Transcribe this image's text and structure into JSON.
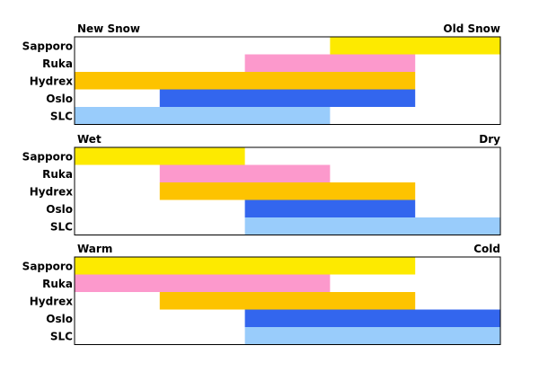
{
  "chart_data": [
    {
      "type": "bar",
      "subtype": "range",
      "left_label": "New Snow",
      "right_label": "Old Snow",
      "xlim": [
        0,
        5
      ],
      "grid": false,
      "categories": [
        "Sapporo",
        "Ruka",
        "Hydrex",
        "Oslo",
        "SLC"
      ],
      "series": [
        {
          "values": [
            [
              3,
              5
            ],
            [
              2,
              4
            ],
            [
              0,
              4
            ],
            [
              1,
              4
            ],
            [
              0,
              3
            ]
          ]
        }
      ]
    },
    {
      "type": "bar",
      "subtype": "range",
      "left_label": "Wet",
      "right_label": "Dry",
      "xlim": [
        0,
        5
      ],
      "grid": false,
      "categories": [
        "Sapporo",
        "Ruka",
        "Hydrex",
        "Oslo",
        "SLC"
      ],
      "series": [
        {
          "values": [
            [
              0,
              2
            ],
            [
              1,
              3
            ],
            [
              1,
              4
            ],
            [
              2,
              4
            ],
            [
              2,
              5
            ]
          ]
        }
      ]
    },
    {
      "type": "bar",
      "subtype": "range",
      "left_label": "Warm",
      "right_label": "Cold",
      "xlim": [
        0,
        5
      ],
      "grid": false,
      "categories": [
        "Sapporo",
        "Ruka",
        "Hydrex",
        "Oslo",
        "SLC"
      ],
      "series": [
        {
          "values": [
            [
              0,
              4
            ],
            [
              0,
              3
            ],
            [
              1,
              4
            ],
            [
              2,
              5
            ],
            [
              2,
              5
            ]
          ]
        }
      ]
    }
  ],
  "colors": {
    "Sapporo": "#fdea00",
    "Ruka": "#fc99cc",
    "Hydrex": "#fdc300",
    "Oslo": "#3366ee",
    "SLC": "#99ccfb"
  }
}
